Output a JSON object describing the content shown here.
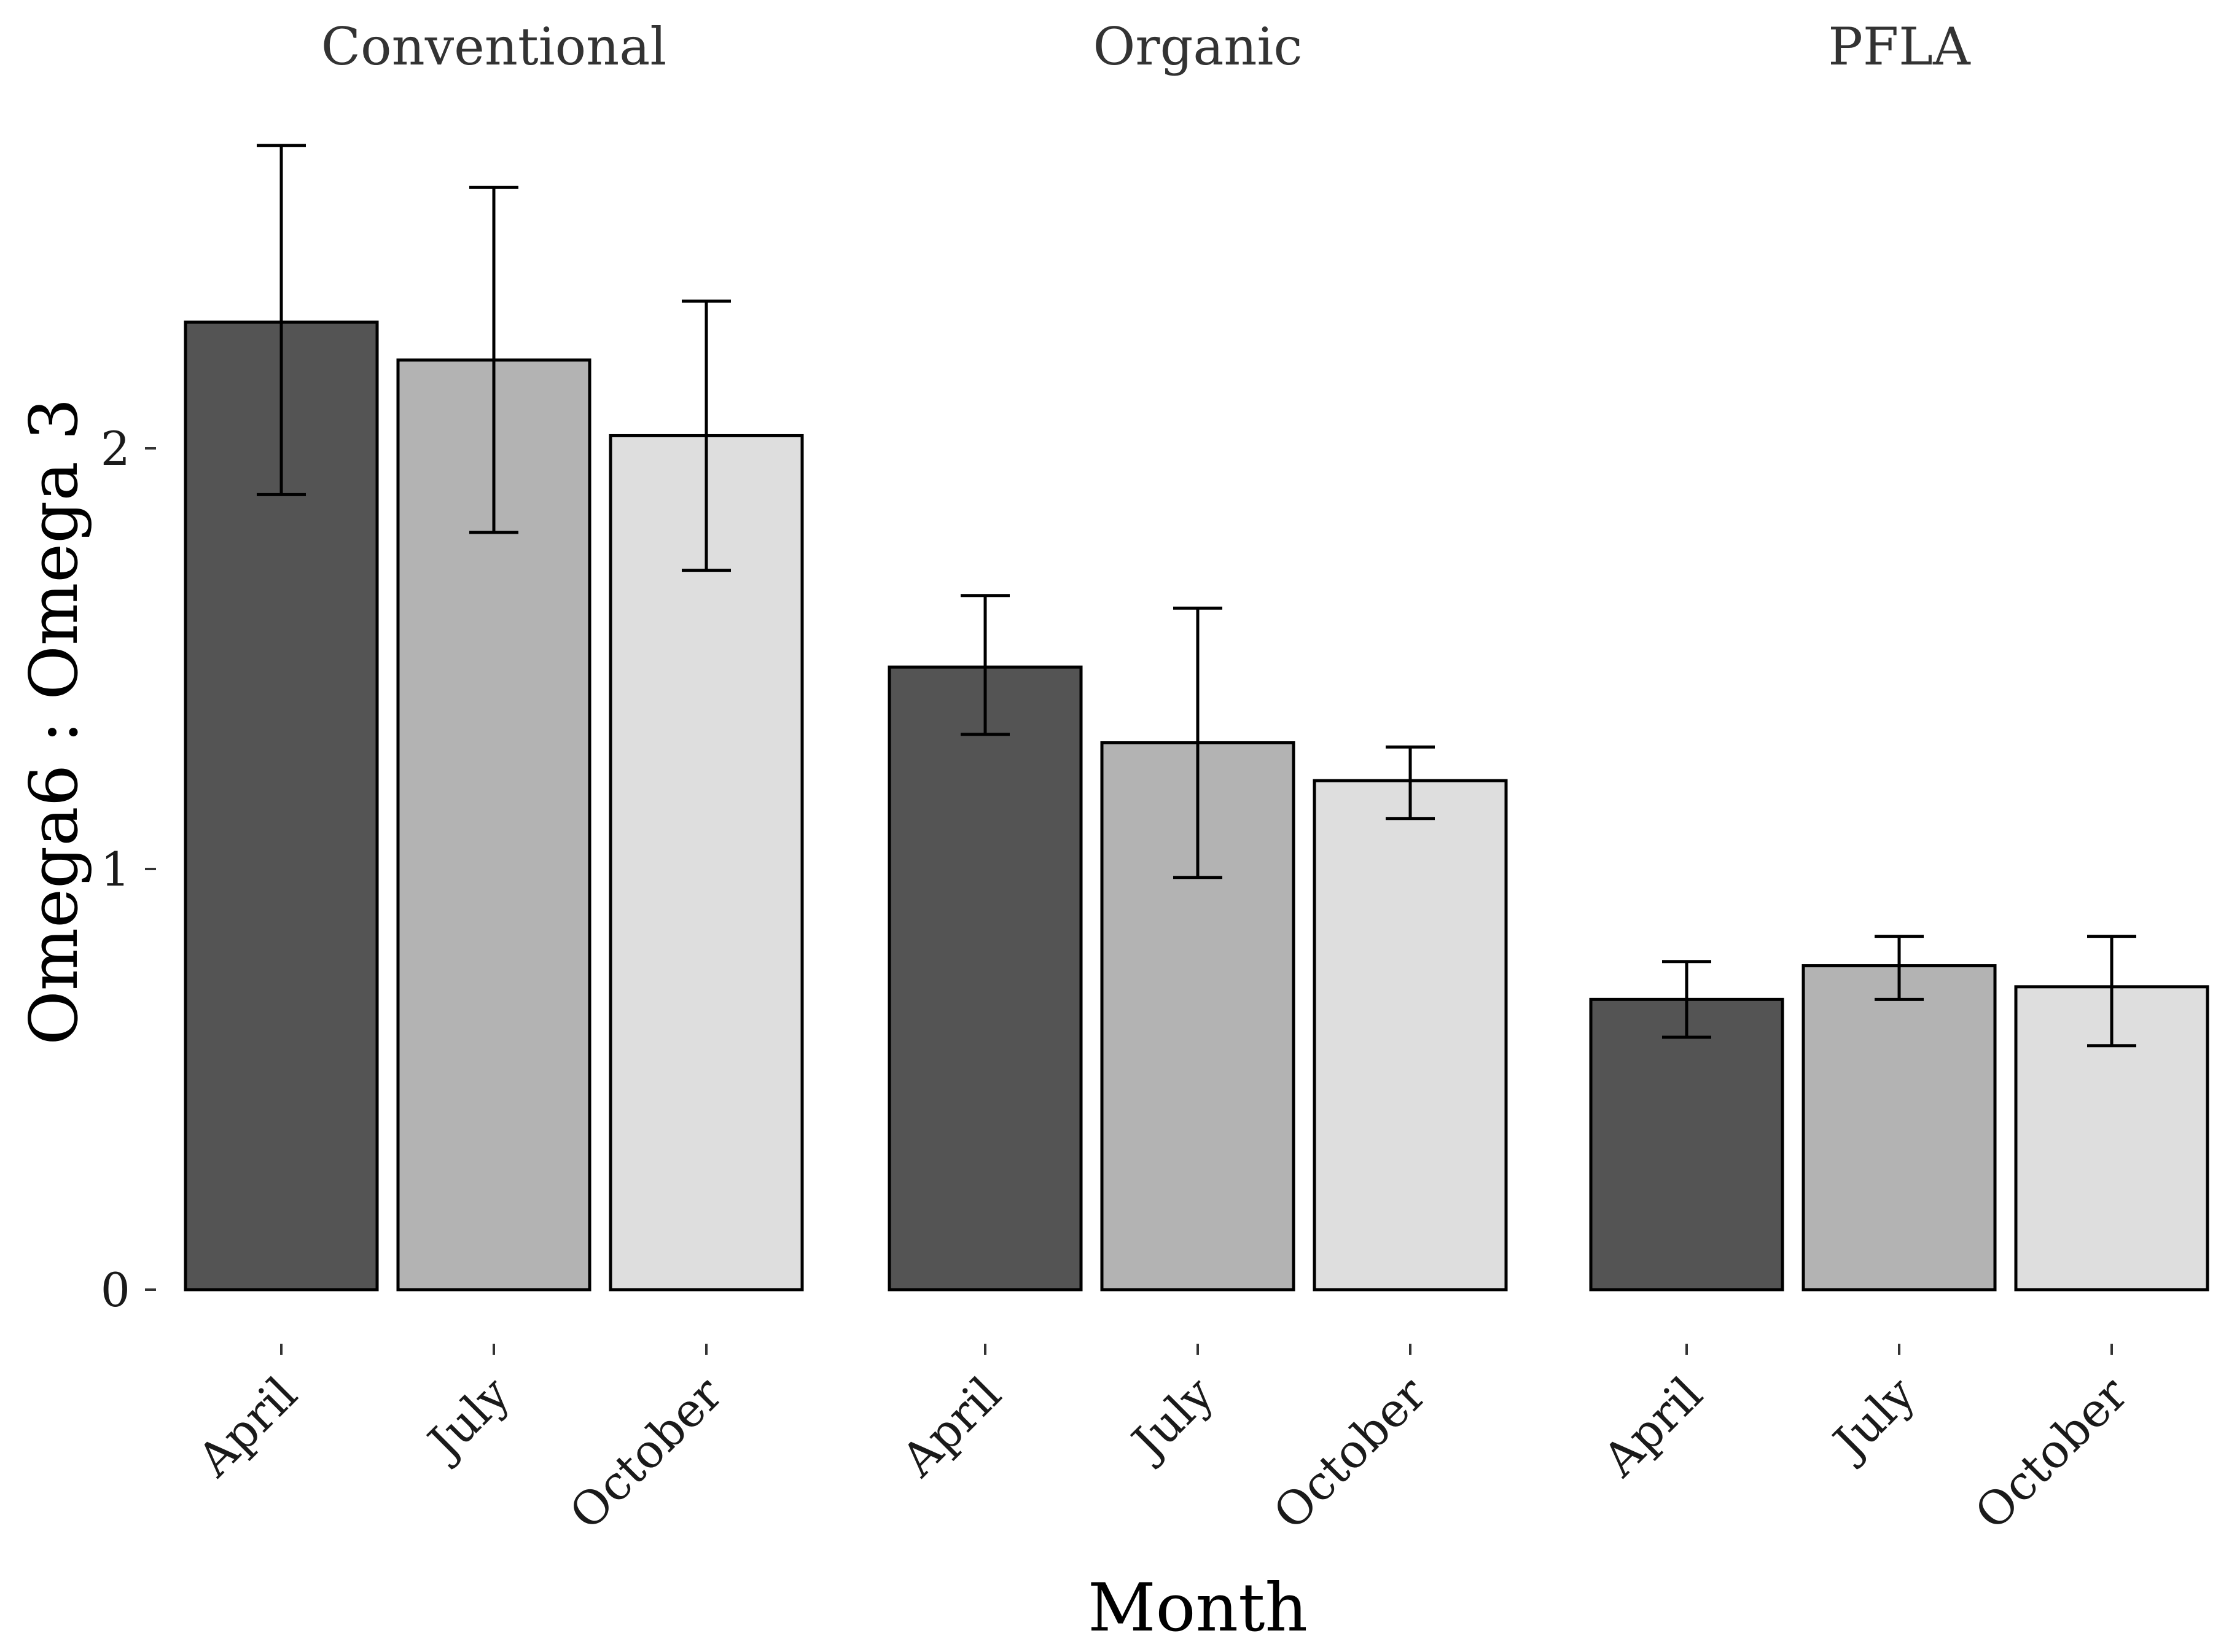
{
  "chart_data": {
    "type": "bar",
    "facets": [
      "Conventional",
      "Organic",
      "PFLA"
    ],
    "categories": [
      "April",
      "July",
      "October"
    ],
    "xlabel": "Month",
    "ylabel": "Omega6 : Omega 3",
    "ylim": [
      0,
      2.75
    ],
    "yticks": [
      0,
      1,
      2
    ],
    "grid": false,
    "legend": "none",
    "colors": {
      "April": "#545454",
      "July": "#b3b3b3",
      "October": "#dedede"
    },
    "series": [
      {
        "facet": "Conventional",
        "values": [
          2.3,
          2.21,
          2.03
        ],
        "error_low": [
          1.89,
          1.8,
          1.71
        ],
        "error_high": [
          2.72,
          2.62,
          2.35
        ]
      },
      {
        "facet": "Organic",
        "values": [
          1.48,
          1.3,
          1.21
        ],
        "error_low": [
          1.32,
          0.98,
          1.12
        ],
        "error_high": [
          1.65,
          1.62,
          1.29
        ]
      },
      {
        "facet": "PFLA",
        "values": [
          0.69,
          0.77,
          0.72
        ],
        "error_low": [
          0.6,
          0.69,
          0.58
        ],
        "error_high": [
          0.78,
          0.84,
          0.84
        ]
      }
    ]
  }
}
